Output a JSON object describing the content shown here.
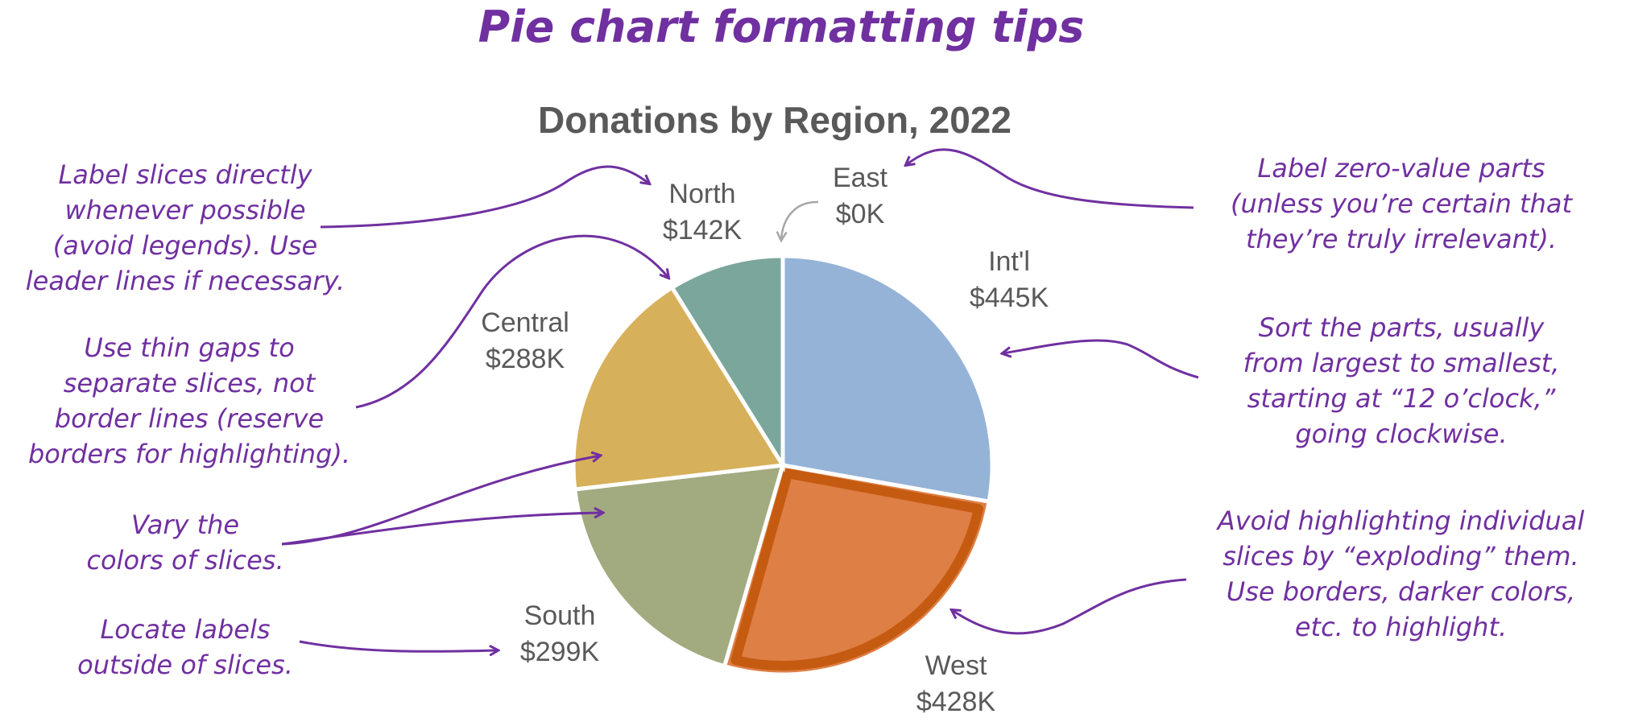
{
  "header": {
    "title": "Pie chart formatting tips"
  },
  "tips": {
    "label_direct": "Label slices directly\nwhenever possible\n(avoid legends). Use\nleader lines if necessary.",
    "thin_gaps": "Use thin gaps to\nseparate slices, not\nborder lines (reserve\nborders for highlighting).",
    "vary_colors": "Vary the\ncolors of slices.",
    "outside_labels": "Locate labels\noutside of slices.",
    "zero_value": "Label zero-value parts\n(unless you’re certain that\nthey’re truly irrelevant).",
    "sort": "Sort the parts, usually\nfrom largest to smallest,\nstarting at “12 o’clock,”\ngoing clockwise.",
    "exploding": "Avoid highlighting individual\nslices by “exploding” them.\nUse borders, darker colors,\netc. to highlight."
  },
  "colors": {
    "annotation": "#7030a0",
    "text": "#595959",
    "highlight_border": "#c55a11",
    "gap": "#ffffff"
  },
  "chart_data": {
    "type": "pie",
    "title": "Donations by Region, 2022",
    "start": "12 o'clock",
    "direction": "clockwise",
    "unit": "$K",
    "slices": [
      {
        "name": "East",
        "value": 0,
        "label": "$0K",
        "color": "#95b3d7",
        "highlighted": false
      },
      {
        "name": "Int'l",
        "value": 445,
        "label": "$445K",
        "color": "#95b3d7",
        "highlighted": false
      },
      {
        "name": "West",
        "value": 428,
        "label": "$428K",
        "color": "#de7f45",
        "highlighted": true
      },
      {
        "name": "South",
        "value": 299,
        "label": "$299K",
        "color": "#a2aa80",
        "highlighted": false
      },
      {
        "name": "Central",
        "value": 288,
        "label": "$288K",
        "color": "#d7b05b",
        "highlighted": false
      },
      {
        "name": "North",
        "value": 142,
        "label": "$142K",
        "color": "#7ba69b",
        "highlighted": false
      }
    ]
  }
}
